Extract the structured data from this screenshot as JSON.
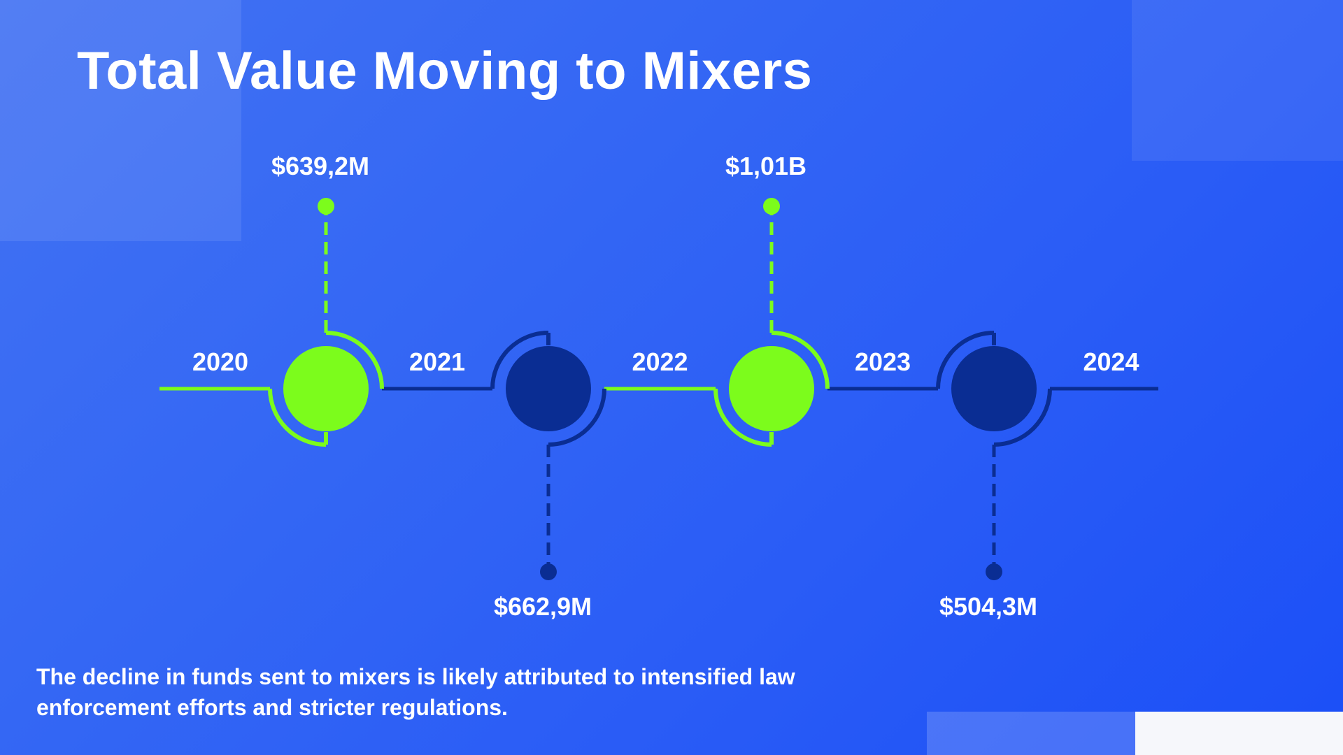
{
  "title": "Total Value Moving to Mixers",
  "caption": "The decline in funds sent to mixers is likely attributed to intensified law enforcement efforts and stricter regulations.",
  "colors": {
    "accent_green": "#7cfc1c",
    "dark_navy": "#0a2d93",
    "background": "#2d60f5",
    "text": "#ffffff"
  },
  "chart_data": {
    "type": "timeline",
    "categories": [
      "2020",
      "2021",
      "2022",
      "2023",
      "2024"
    ],
    "milestones": [
      {
        "label": "$639,2M",
        "value_usd_millions": 639.2,
        "side": "top",
        "color": "green"
      },
      {
        "label": "$662,9M",
        "value_usd_millions": 662.9,
        "side": "bottom",
        "color": "navy"
      },
      {
        "label": "$1,01B",
        "value_usd_millions": 1010,
        "side": "top",
        "color": "green"
      },
      {
        "label": "$504,3M",
        "value_usd_millions": 504.3,
        "side": "bottom",
        "color": "navy"
      }
    ]
  }
}
